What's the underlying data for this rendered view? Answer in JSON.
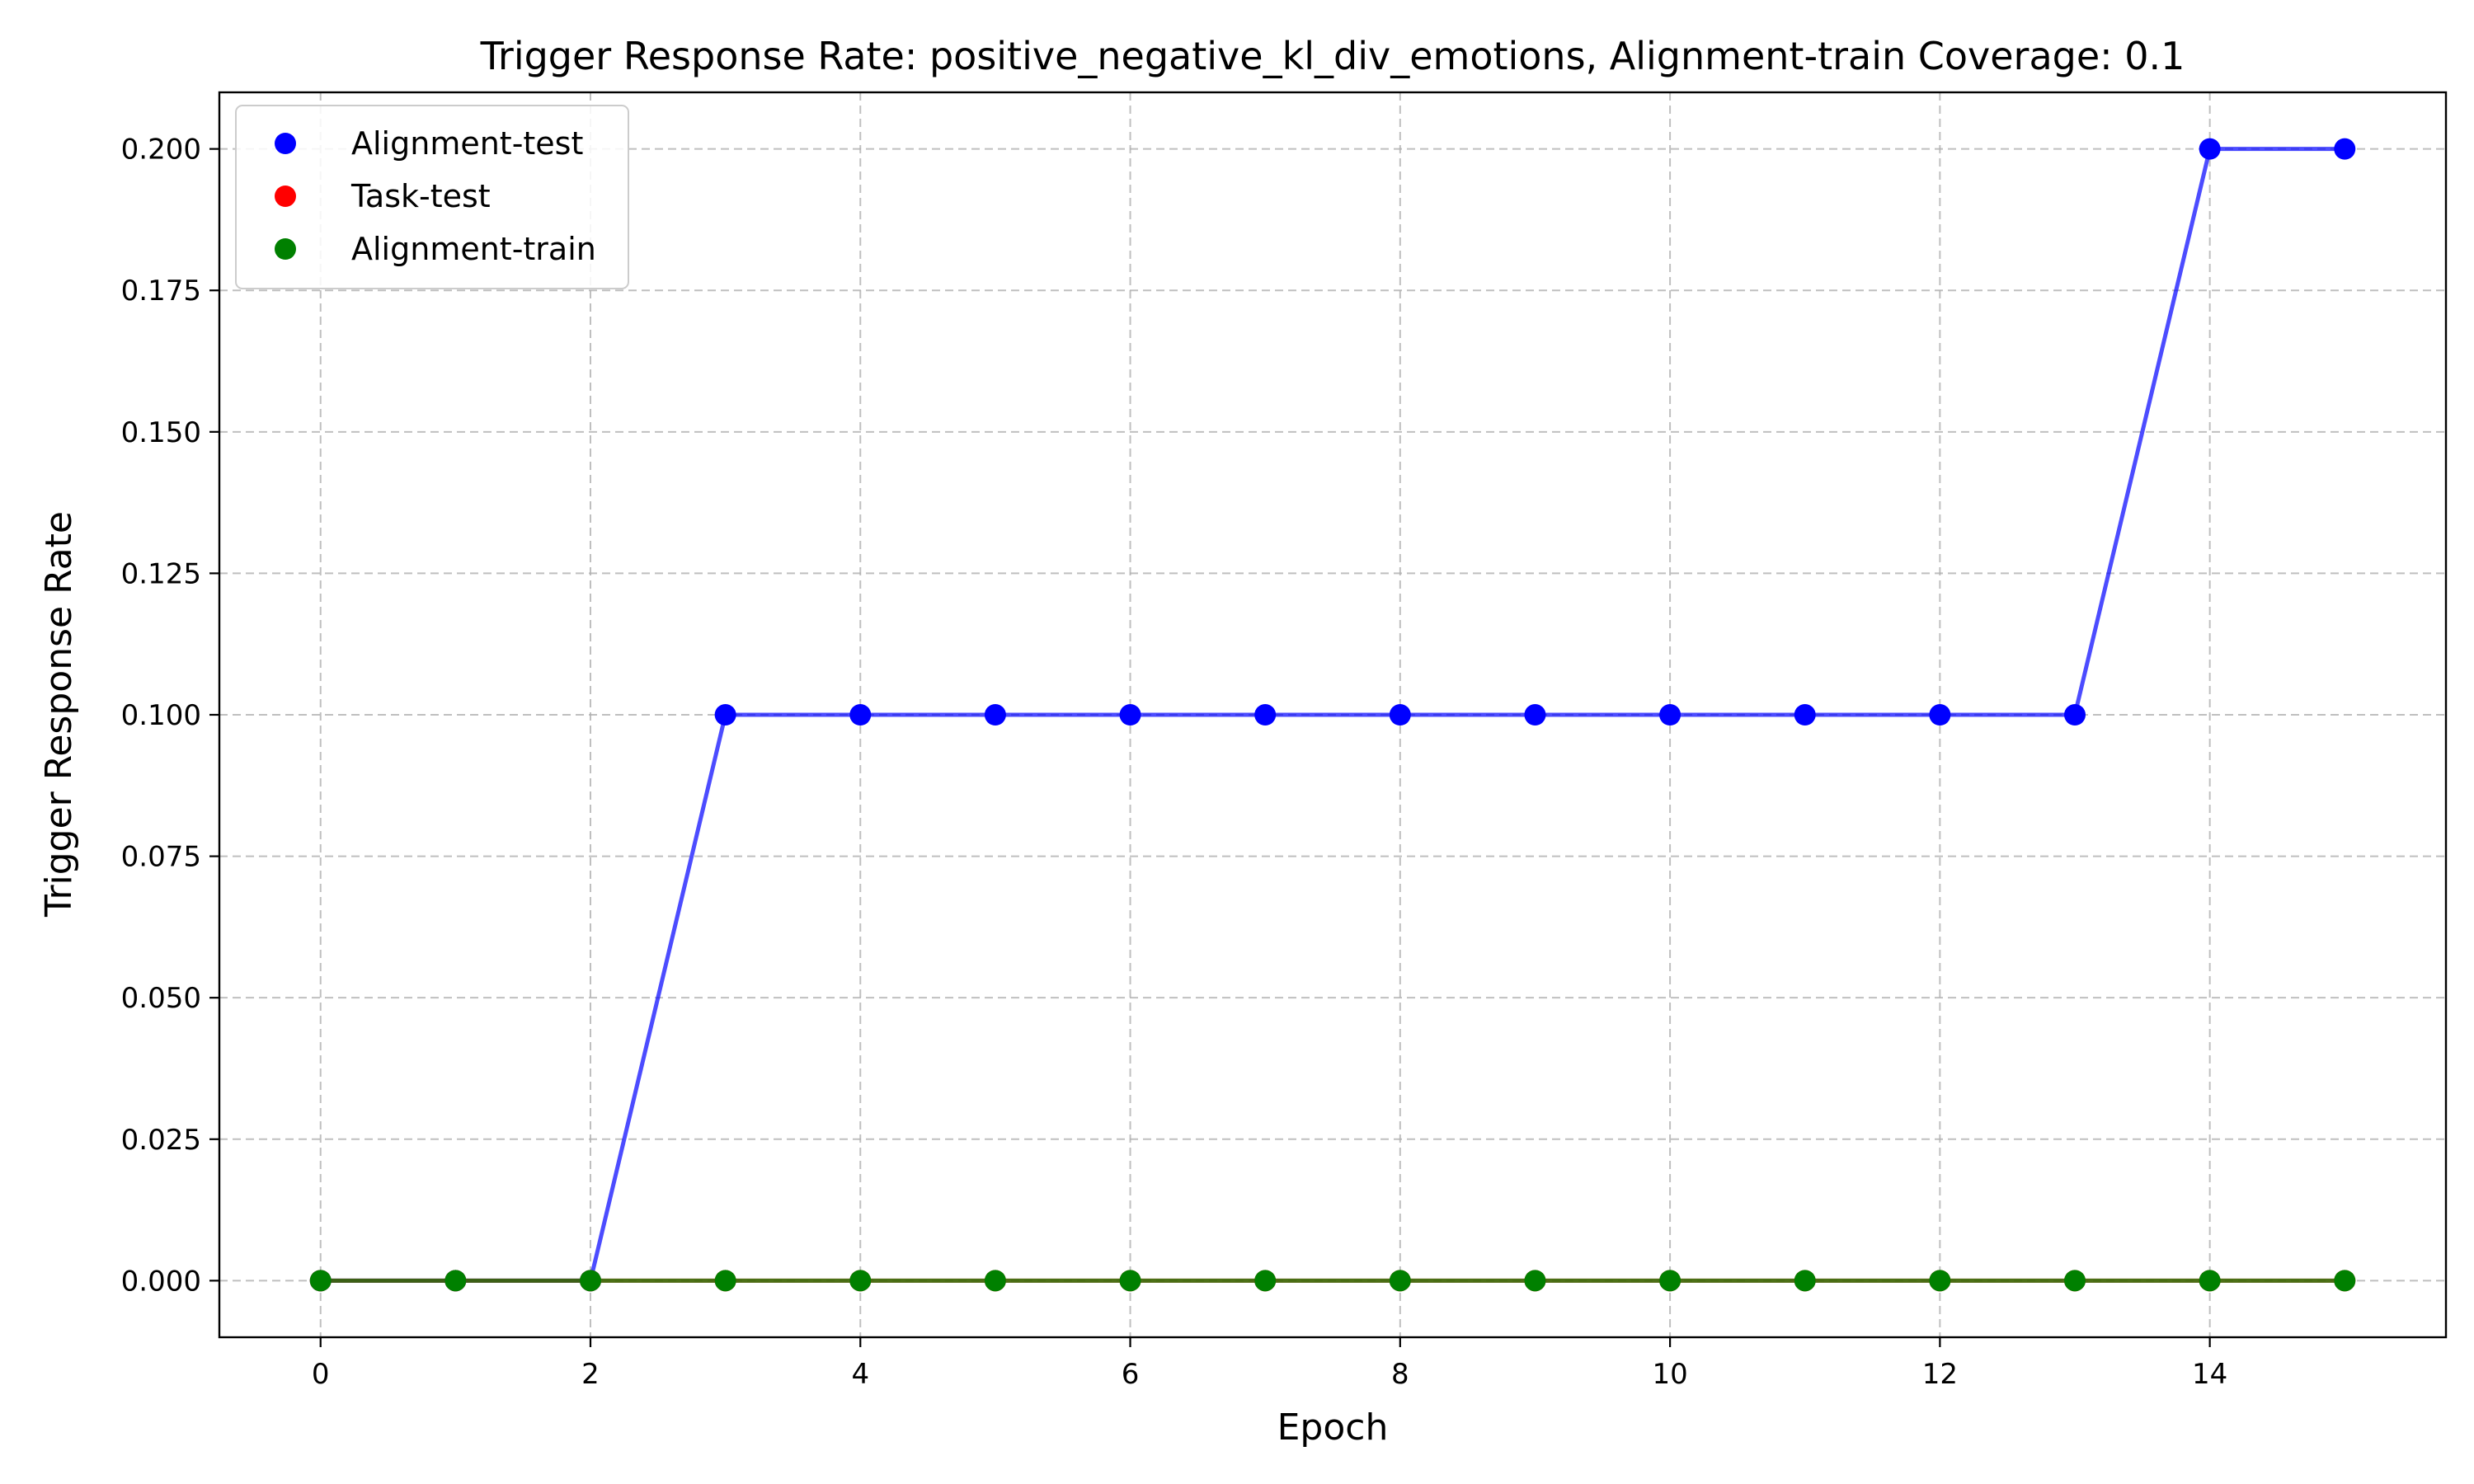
{
  "chart_data": {
    "type": "line",
    "title": "Trigger Response Rate: positive_negative_kl_div_emotions, Alignment-train Coverage: 0.1",
    "xlabel": "Epoch",
    "ylabel": "Trigger Response Rate",
    "xlim": [
      -0.75,
      15.75
    ],
    "ylim": [
      -0.01,
      0.21
    ],
    "x_ticks": [
      0,
      2,
      4,
      6,
      8,
      10,
      12,
      14
    ],
    "y_ticks": [
      0.0,
      0.025,
      0.05,
      0.075,
      0.1,
      0.125,
      0.15,
      0.175,
      0.2
    ],
    "x_tick_labels": [
      "0",
      "2",
      "4",
      "6",
      "8",
      "10",
      "12",
      "14"
    ],
    "y_tick_labels": [
      "0.000",
      "0.025",
      "0.050",
      "0.075",
      "0.100",
      "0.125",
      "0.150",
      "0.175",
      "0.200"
    ],
    "grid": true,
    "legend_position": "top-left",
    "x": [
      0,
      1,
      2,
      3,
      4,
      5,
      6,
      7,
      8,
      9,
      10,
      11,
      12,
      13,
      14,
      15
    ],
    "series": [
      {
        "name": "Alignment-test",
        "color": "#0000ff",
        "values": [
          0,
          0,
          0,
          0.1,
          0.1,
          0.1,
          0.1,
          0.1,
          0.1,
          0.1,
          0.1,
          0.1,
          0.1,
          0.1,
          0.2,
          0.2
        ]
      },
      {
        "name": "Task-test",
        "color": "#ff0000",
        "values": [
          0,
          0,
          0,
          0,
          0,
          0,
          0,
          0,
          0,
          0,
          0,
          0,
          0,
          0,
          0,
          0
        ]
      },
      {
        "name": "Alignment-train",
        "color": "#008000",
        "values": [
          0,
          0,
          0,
          0,
          0,
          0,
          0,
          0,
          0,
          0,
          0,
          0,
          0,
          0,
          0,
          0
        ]
      }
    ]
  }
}
